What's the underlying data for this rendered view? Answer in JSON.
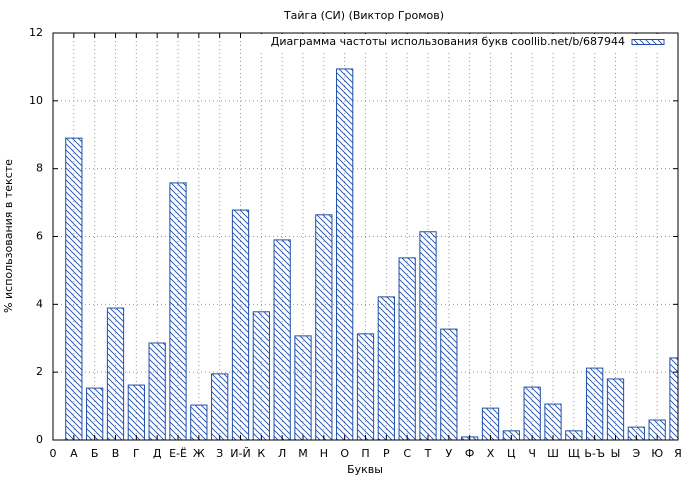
{
  "chart_data": {
    "type": "bar",
    "title": "Тайга (СИ) (Виктор Громов)",
    "xlabel": "Буквы",
    "ylabel": "% использования в тексте",
    "series": [
      {
        "name": "Диаграмма частоты использования букв coollib.net/b/687944",
        "color": "#1f4fa8",
        "values": [
          8.9,
          1.53,
          3.89,
          1.62,
          2.86,
          7.58,
          1.03,
          1.95,
          6.78,
          3.78,
          5.9,
          3.07,
          6.64,
          10.94,
          3.13,
          4.22,
          5.37,
          6.14,
          3.27,
          0.09,
          0.94,
          0.27,
          1.56,
          1.06,
          0.27,
          2.12,
          1.8,
          0.38,
          0.59,
          2.42
        ]
      }
    ],
    "x": [
      1,
      2,
      3,
      4,
      5,
      6,
      7,
      8,
      9,
      10,
      11,
      12,
      13,
      14,
      15,
      16,
      17,
      18,
      19,
      20,
      21,
      22,
      23,
      24,
      25,
      26,
      27,
      28,
      29,
      30
    ],
    "xlim": [
      0,
      30
    ],
    "xticks": [
      0,
      {
        "value": 1,
        "label": "А"
      },
      {
        "value": 2,
        "label": "Б"
      },
      {
        "value": 3,
        "label": "В"
      },
      {
        "value": 4,
        "label": "Г"
      },
      {
        "value": 5,
        "label": "Д"
      },
      {
        "value": 6,
        "label": "Е-Ё"
      },
      {
        "value": 7,
        "label": "Ж"
      },
      {
        "value": 8,
        "label": "З"
      },
      {
        "value": 9,
        "label": "И-Й"
      },
      {
        "value": 10,
        "label": "К"
      },
      {
        "value": 11,
        "label": "Л"
      },
      {
        "value": 12,
        "label": "М"
      },
      {
        "value": 13,
        "label": "Н"
      },
      {
        "value": 14,
        "label": "О"
      },
      {
        "value": 15,
        "label": "П"
      },
      {
        "value": 16,
        "label": "Р"
      },
      {
        "value": 17,
        "label": "С"
      },
      {
        "value": 18,
        "label": "Т"
      },
      {
        "value": 19,
        "label": "У"
      },
      {
        "value": 20,
        "label": "Ф"
      },
      {
        "value": 21,
        "label": "Х"
      },
      {
        "value": 22,
        "label": "Ц"
      },
      {
        "value": 23,
        "label": "Ч"
      },
      {
        "value": 24,
        "label": "Ш"
      },
      {
        "value": 25,
        "label": "Щ"
      },
      {
        "value": 26,
        "label": "Ь-Ъ"
      },
      {
        "value": 27,
        "label": "Ы"
      },
      {
        "value": 28,
        "label": "Э"
      },
      {
        "value": 29,
        "label": "Ю"
      },
      {
        "value": 30,
        "label": "Я"
      }
    ],
    "ylim": [
      0,
      12
    ],
    "yticks": [
      0,
      2,
      4,
      6,
      8,
      10,
      12
    ],
    "grid": true,
    "legend": "top-right"
  }
}
